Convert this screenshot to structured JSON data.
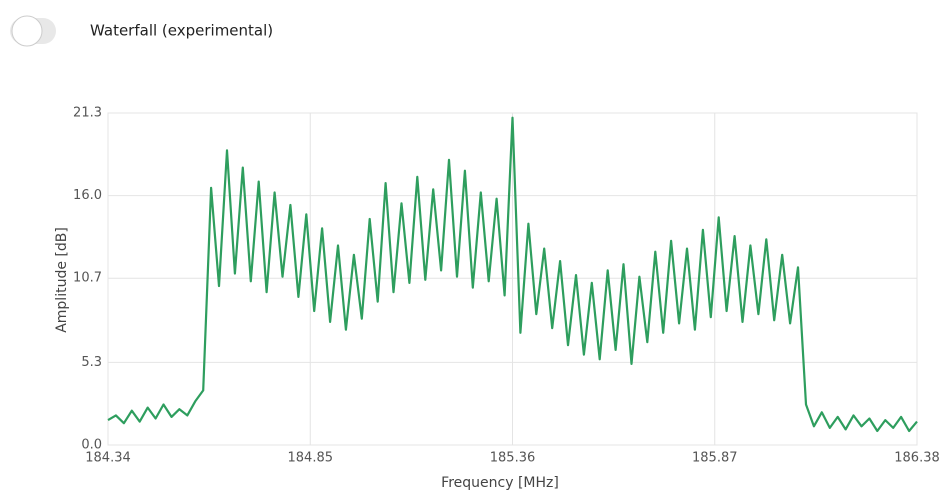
{
  "toggle_label": "Waterfall (experimental)",
  "chart_data": {
    "type": "line",
    "xlabel": "Frequency [MHz]",
    "ylabel": "Amplitude [dB]",
    "xlim": [
      184.34,
      186.38
    ],
    "ylim": [
      0,
      21.3
    ],
    "xticks": [
      184.34,
      184.85,
      185.36,
      185.87,
      186.38
    ],
    "yticks": [
      {
        "value": 0,
        "label": "0.0"
      },
      5.3,
      10.7,
      {
        "value": 16,
        "label": "16.0"
      },
      21.3
    ],
    "grid": true,
    "x": [
      184.34,
      184.36,
      184.38,
      184.4,
      184.42,
      184.44,
      184.46,
      184.48,
      184.5,
      184.52,
      184.54,
      184.56,
      184.58,
      184.6,
      184.62,
      184.64,
      184.66,
      184.68,
      184.7,
      184.72,
      184.74,
      184.76,
      184.78,
      184.8,
      184.82,
      184.84,
      184.86,
      184.88,
      184.9,
      184.92,
      184.94,
      184.96,
      184.98,
      185.0,
      185.02,
      185.04,
      185.06,
      185.08,
      185.1,
      185.12,
      185.14,
      185.16,
      185.18,
      185.2,
      185.22,
      185.24,
      185.26,
      185.28,
      185.3,
      185.32,
      185.34,
      185.36,
      185.38,
      185.4,
      185.42,
      185.44,
      185.46,
      185.48,
      185.5,
      185.52,
      185.54,
      185.56,
      185.58,
      185.6,
      185.62,
      185.64,
      185.66,
      185.68,
      185.7,
      185.72,
      185.74,
      185.76,
      185.78,
      185.8,
      185.82,
      185.84,
      185.86,
      185.88,
      185.9,
      185.92,
      185.94,
      185.96,
      185.98,
      186.0,
      186.02,
      186.04,
      186.06,
      186.08,
      186.1,
      186.12,
      186.14,
      186.16,
      186.18,
      186.2,
      186.22,
      186.24,
      186.26,
      186.28,
      186.3,
      186.32,
      186.34,
      186.36,
      186.38
    ],
    "series": [
      {
        "color": "#2e9e5e",
        "values": [
          1.6,
          1.9,
          1.4,
          2.2,
          1.5,
          2.4,
          1.7,
          2.6,
          1.8,
          2.3,
          1.9,
          2.8,
          3.5,
          16.5,
          10.2,
          18.9,
          11.0,
          17.8,
          10.5,
          16.9,
          9.8,
          16.2,
          10.8,
          15.4,
          9.5,
          14.8,
          8.6,
          13.9,
          7.9,
          12.8,
          7.4,
          12.2,
          8.1,
          14.5,
          9.2,
          16.8,
          9.8,
          15.5,
          10.4,
          17.2,
          10.6,
          16.4,
          11.2,
          18.3,
          10.8,
          17.6,
          10.1,
          16.2,
          10.5,
          15.8,
          9.6,
          21.0,
          7.2,
          14.2,
          8.4,
          12.6,
          7.5,
          11.8,
          6.4,
          10.9,
          5.8,
          10.4,
          5.5,
          11.2,
          6.1,
          11.6,
          5.2,
          10.8,
          6.6,
          12.4,
          7.2,
          13.1,
          7.8,
          12.6,
          7.4,
          13.8,
          8.2,
          14.6,
          8.6,
          13.4,
          7.9,
          12.8,
          8.4,
          13.2,
          8.0,
          12.2,
          7.8,
          11.4,
          2.6,
          1.2,
          2.1,
          1.1,
          1.8,
          1.0,
          1.9,
          1.2,
          1.7,
          0.9,
          1.6,
          1.1,
          1.8,
          0.9,
          1.5
        ]
      }
    ]
  }
}
